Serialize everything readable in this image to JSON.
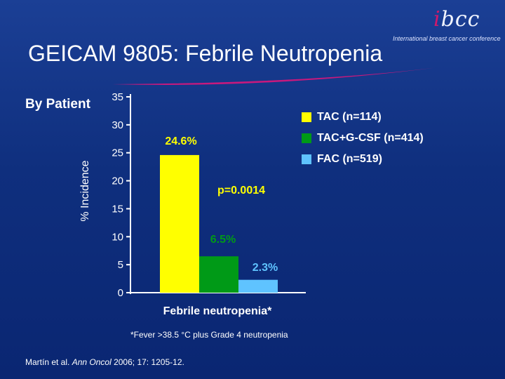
{
  "header": {
    "title": "GEICAM 9805: Febrile Neutropenia",
    "logo_text": "bcc",
    "logo_subtitle": "International breast cancer conference"
  },
  "subtitle": "By Patient",
  "footnote": "*Fever >38.5 °C plus Grade 4 neutropenia",
  "citation": {
    "authors": "Martín et al. ",
    "journal": "Ann Oncol",
    "details": " 2006; 17: 1205-12."
  },
  "colors": {
    "yellow": "#ffff00",
    "green": "#009a17",
    "light_blue": "#5fc3ff",
    "swoosh": "#c8197d"
  },
  "chart_data": {
    "type": "bar",
    "ylabel": "% Incidence",
    "xlabel": "Febrile neutropenia*",
    "ylim": [
      0,
      35
    ],
    "yticks": [
      "0",
      "5",
      "10",
      "15",
      "20",
      "25",
      "30",
      "35"
    ],
    "grid": false,
    "legend_position": "top-right",
    "series": [
      {
        "name": "TAC (n=114)",
        "value": 24.6,
        "label": "24.6%",
        "color": "#ffff00"
      },
      {
        "name": "TAC+G-CSF (n=414)",
        "value": 6.5,
        "label": "6.5%",
        "color": "#009a17"
      },
      {
        "name": "FAC (n=519)",
        "value": 2.3,
        "label": "2.3%",
        "color": "#5fc3ff"
      }
    ],
    "annotation": "p=0.0014"
  }
}
